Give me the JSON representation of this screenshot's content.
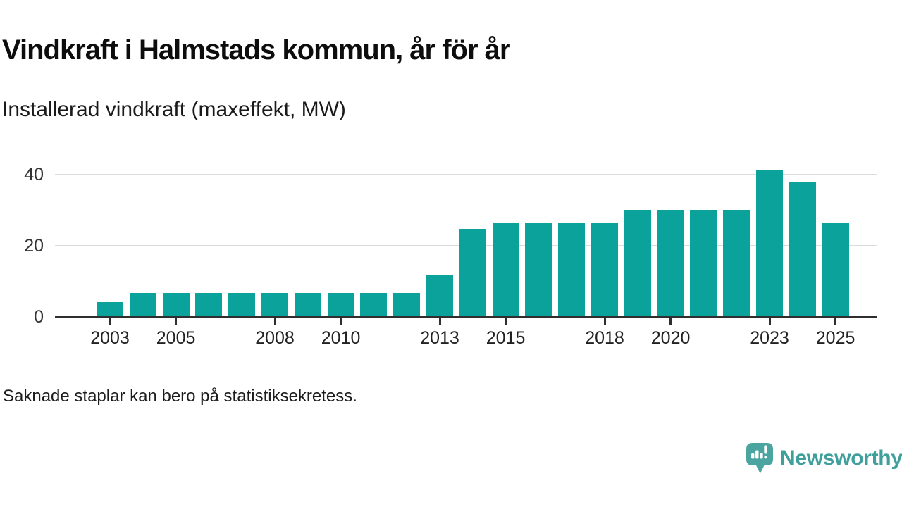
{
  "header": {
    "title": "Vindkraft i Halmstads kommun, år för år",
    "subtitle": "Installerad vindkraft (maxeffekt, MW)"
  },
  "footer": {
    "note": "Saknade staplar kan bero på statistiksekretess."
  },
  "brand": {
    "name": "Newsworthy",
    "icon": "speech-bubble-bar-chart-icon",
    "color": "#3fa09b",
    "icon_color": "#4aa5a0"
  },
  "chart_data": {
    "type": "bar",
    "title": "Vindkraft i Halmstads kommun, år för år",
    "subtitle": "Installerad vindkraft (maxeffekt, MW)",
    "unit": "MW",
    "categories": [
      "2003",
      "2004",
      "2005",
      "2006",
      "2007",
      "2008",
      "2009",
      "2010",
      "2011",
      "2012",
      "2013",
      "2014",
      "2015",
      "2016",
      "2017",
      "2018",
      "2019",
      "2020",
      "2021",
      "2022",
      "2023",
      "2024",
      "2025"
    ],
    "values": [
      4.1,
      6.7,
      6.7,
      6.7,
      6.7,
      6.7,
      6.7,
      6.7,
      6.7,
      6.7,
      12,
      24.8,
      26.5,
      26.5,
      26.5,
      26.5,
      30.2,
      30.2,
      30.2,
      30.2,
      41.4,
      37.9,
      26.5
    ],
    "xlabel": "",
    "ylabel": "",
    "ylim": [
      0,
      44
    ],
    "yticks": [
      0,
      20,
      40
    ],
    "xtick_labels": [
      "2003",
      "2005",
      "2008",
      "2010",
      "2013",
      "2015",
      "2018",
      "2020",
      "2023",
      "2025"
    ],
    "legend": "none",
    "grid": "horizontal",
    "bar_color": "#0aa29b",
    "grid_color": "#dcdcdc",
    "axis_color": "#2f2f2f",
    "footnote": "Saknade staplar kan bero på statistiksekretess."
  }
}
